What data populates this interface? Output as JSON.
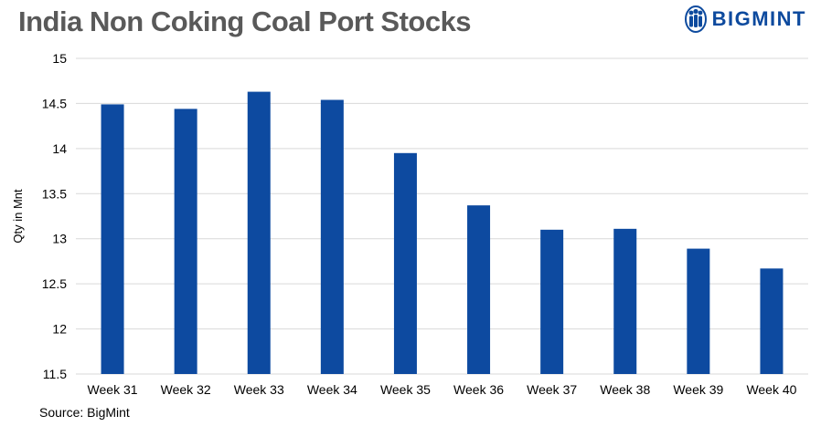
{
  "header": {
    "title": "India Non Coking Coal Port Stocks",
    "brand": "BIGMINT"
  },
  "footer": {
    "source": "Source: BigMint"
  },
  "colors": {
    "bar": "#0d4aa0",
    "title": "#595959",
    "brand": "#0d4a9e",
    "grid": "#d9d9d9"
  },
  "chart_data": {
    "type": "bar",
    "title": "India Non Coking Coal Port Stocks",
    "xlabel": "",
    "ylabel": "Qty in Mnt",
    "categories": [
      "Week 31",
      "Week 32",
      "Week 33",
      "Week 34",
      "Week 35",
      "Week 36",
      "Week 37",
      "Week 38",
      "Week 39",
      "Week 40"
    ],
    "values": [
      14.49,
      14.44,
      14.63,
      14.54,
      13.95,
      13.37,
      13.1,
      13.11,
      12.89,
      12.67
    ],
    "ylim": [
      11.5,
      15
    ],
    "yticks": [
      "11.5",
      "12",
      "12.5",
      "13",
      "13.5",
      "14",
      "14.5",
      "15"
    ],
    "grid": true,
    "legend": "none"
  }
}
